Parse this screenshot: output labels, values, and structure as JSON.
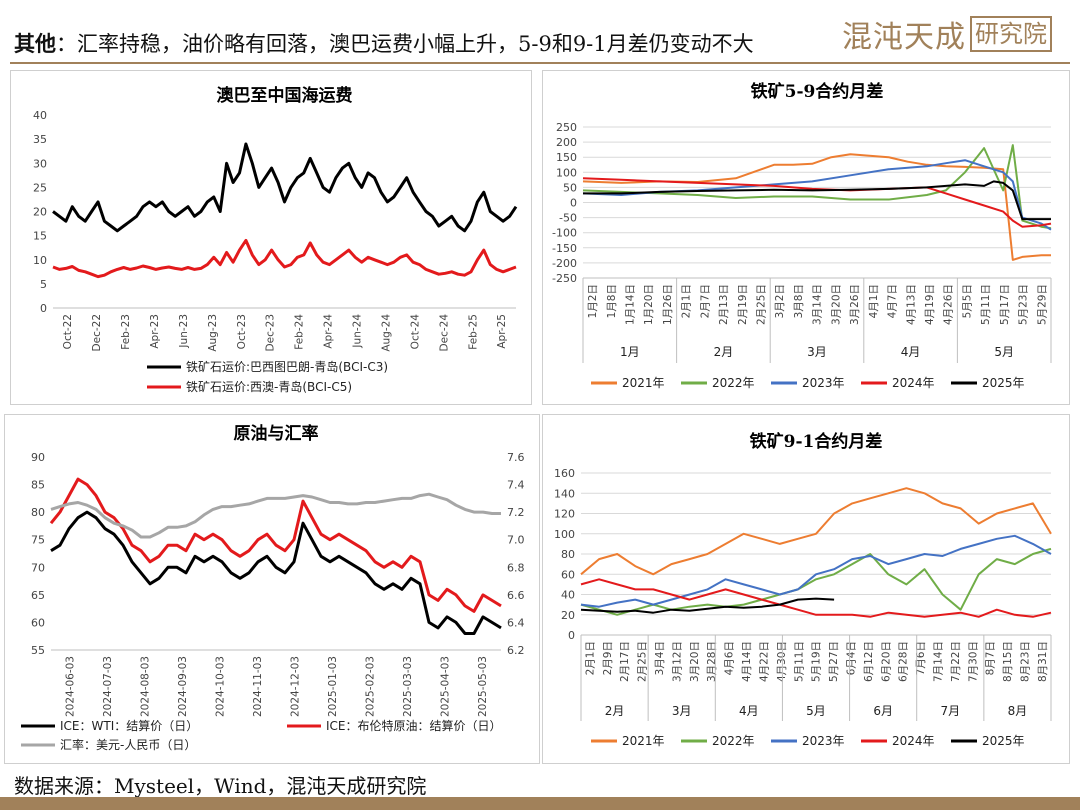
{
  "header": {
    "title_bold": "其他",
    "title_rest": "：汇率持稳，油价略有回落，澳巴运费小幅上升，5-9和9-1月差仍变动不大",
    "logo_text": "混沌天成",
    "logo_box": "研究院"
  },
  "footer": {
    "source": "数据来源：Mysteel，Wind，混沌天成研究院"
  },
  "colors": {
    "accent": "#a1815a",
    "s2021": "#ed7d31",
    "s2022": "#70ad47",
    "s2023": "#4472c4",
    "s2024": "#e31a1c",
    "s2025": "#000000",
    "fx": "#a6a6a6"
  },
  "chart_data": [
    {
      "id": "freight",
      "type": "line",
      "title": "澳巴至中国海运费",
      "ylim": [
        0,
        40
      ],
      "yticks": [
        0,
        5,
        10,
        15,
        20,
        25,
        30,
        35,
        40
      ],
      "xticks": [
        "Oct-22",
        "Dec-22",
        "Feb-23",
        "Apr-23",
        "Jun-23",
        "Aug-23",
        "Oct-23",
        "Dec-23",
        "Feb-24",
        "Apr-24",
        "Jun-24",
        "Aug-24",
        "Oct-24",
        "Dec-24",
        "Feb-25",
        "Apr-25"
      ],
      "series": [
        {
          "name": "铁矿石运价:巴西图巴朗-青岛(BCI-C3)",
          "color": "#000000",
          "values": [
            20,
            19,
            18,
            21,
            19,
            18,
            20,
            22,
            18,
            17,
            16,
            17,
            18,
            19,
            21,
            22,
            21,
            22,
            20,
            19,
            20,
            21,
            19,
            20,
            22,
            23,
            20,
            30,
            26,
            28,
            34,
            30,
            25,
            27,
            29,
            26,
            22,
            25,
            27,
            28,
            31,
            28,
            25,
            24,
            27,
            29,
            30,
            27,
            25,
            28,
            27,
            24,
            22,
            23,
            25,
            27,
            24,
            22,
            20,
            19,
            17,
            18,
            19,
            17,
            16,
            18,
            22,
            24,
            20,
            19,
            18,
            19,
            21
          ]
        },
        {
          "name": "铁矿石运价:西澳-青岛(BCI-C5)",
          "color": "#e31a1c",
          "values": [
            8.5,
            8,
            8.2,
            8.6,
            7.8,
            7.5,
            7,
            6.5,
            6.8,
            7.5,
            8,
            8.4,
            8,
            8.3,
            8.7,
            8.4,
            8,
            8.3,
            8.5,
            8.2,
            8,
            8.4,
            8,
            8.2,
            9,
            10.5,
            9,
            11.5,
            9.5,
            12,
            14,
            11,
            9,
            10,
            12,
            10,
            8.5,
            9,
            10.5,
            11,
            13.5,
            11,
            9.5,
            9,
            10,
            11,
            12,
            10.5,
            9.5,
            10.5,
            10,
            9.5,
            9,
            9.5,
            10.5,
            11,
            9.5,
            9,
            8,
            7.5,
            7,
            7.2,
            7.5,
            7,
            6.8,
            7.5,
            10,
            12,
            9,
            8,
            7.5,
            8,
            8.5
          ]
        }
      ]
    },
    {
      "id": "spread59",
      "type": "line",
      "title": "铁矿5-9合约月差",
      "ylim": [
        -250,
        250
      ],
      "yticks": [
        -250,
        -200,
        -150,
        -100,
        -50,
        0,
        50,
        100,
        150,
        200,
        250
      ],
      "xticks": [
        "1月2日",
        "1月8日",
        "1月14日",
        "1月20日",
        "1月26日",
        "2月1日",
        "2月7日",
        "2月13日",
        "2月19日",
        "2月25日",
        "3月2日",
        "3月8日",
        "3月14日",
        "3月20日",
        "3月26日",
        "4月1日",
        "4月7日",
        "4月13日",
        "4月19日",
        "4月26日",
        "5月5日",
        "5月11日",
        "5月17日",
        "5月23日",
        "5月29日"
      ],
      "months": [
        "1月",
        "2月",
        "3月",
        "4月",
        "5月"
      ],
      "series": [
        {
          "name": "2021年",
          "color": "#ed7d31",
          "x": [
            0,
            2,
            4,
            6,
            8,
            10,
            11,
            12,
            13,
            14,
            15,
            16,
            17,
            18,
            19,
            20,
            21,
            22,
            22.5,
            23,
            24,
            24.5
          ],
          "values": [
            70,
            65,
            70,
            68,
            80,
            125,
            125,
            128,
            150,
            160,
            155,
            150,
            135,
            125,
            120,
            118,
            115,
            110,
            -190,
            -180,
            -175,
            -175
          ]
        },
        {
          "name": "2022年",
          "color": "#70ad47",
          "x": [
            0,
            2,
            4,
            6,
            8,
            10,
            12,
            14,
            16,
            18,
            19,
            20,
            21,
            22,
            22.5,
            23,
            24,
            24.5
          ],
          "values": [
            40,
            35,
            30,
            25,
            15,
            20,
            20,
            10,
            10,
            25,
            40,
            100,
            180,
            40,
            190,
            -60,
            -80,
            -85
          ]
        },
        {
          "name": "2023年",
          "color": "#4472c4",
          "x": [
            0,
            2,
            4,
            6,
            8,
            10,
            12,
            14,
            16,
            18,
            19,
            20,
            21,
            22,
            22.5,
            23,
            24,
            24.5
          ],
          "values": [
            30,
            25,
            35,
            40,
            50,
            60,
            70,
            90,
            110,
            120,
            130,
            140,
            120,
            100,
            70,
            -50,
            -70,
            -90
          ]
        },
        {
          "name": "2024年",
          "color": "#e31a1c",
          "x": [
            0,
            2,
            4,
            6,
            8,
            10,
            12,
            14,
            16,
            18,
            19,
            20,
            21,
            22,
            22.5,
            23,
            24,
            24.5
          ],
          "values": [
            80,
            75,
            70,
            65,
            60,
            55,
            45,
            40,
            45,
            50,
            30,
            10,
            -10,
            -30,
            -60,
            -80,
            -75,
            -70
          ]
        },
        {
          "name": "2025年",
          "color": "#000000",
          "x": [
            0,
            2,
            4,
            6,
            8,
            10,
            12,
            14,
            16,
            18,
            19,
            20,
            21,
            21.5,
            22,
            22.5,
            23,
            24,
            24.5
          ],
          "values": [
            30,
            30,
            35,
            38,
            40,
            42,
            40,
            42,
            45,
            50,
            55,
            60,
            55,
            70,
            65,
            40,
            -55,
            -55,
            -55
          ]
        }
      ]
    },
    {
      "id": "oilfx",
      "type": "line",
      "title": "原油与汇率",
      "ylim": [
        55,
        90
      ],
      "yticks": [
        55,
        60,
        65,
        70,
        75,
        80,
        85,
        90
      ],
      "y2lim": [
        6.2,
        7.6
      ],
      "y2ticks": [
        6.2,
        6.4,
        6.6,
        6.8,
        7.0,
        7.2,
        7.4,
        7.6
      ],
      "xticks": [
        "2024-06-03",
        "2024-07-03",
        "2024-08-03",
        "2024-09-03",
        "2024-10-03",
        "2024-11-03",
        "2024-12-03",
        "2025-01-03",
        "2025-02-03",
        "2025-03-03",
        "2025-04-03",
        "2025-05-03"
      ],
      "series": [
        {
          "name": "ICE：WTI：结算价（日）",
          "color": "#000000",
          "axis": "left",
          "values": [
            73,
            74,
            77,
            79,
            80,
            79,
            77,
            76,
            74,
            71,
            69,
            67,
            68,
            70,
            70,
            69,
            72,
            71,
            72,
            71,
            69,
            68,
            69,
            71,
            72,
            70,
            69,
            71,
            78,
            75,
            72,
            71,
            72,
            71,
            70,
            69,
            67,
            66,
            67,
            66,
            68,
            67,
            60,
            59,
            61,
            60,
            58,
            58,
            61,
            60,
            59
          ]
        },
        {
          "name": "ICE：布伦特原油：结算价（日）",
          "color": "#e31a1c",
          "axis": "left",
          "values": [
            78,
            80,
            83,
            86,
            85,
            83,
            80,
            79,
            77,
            74,
            73,
            71,
            72,
            74,
            74,
            73,
            76,
            75,
            76,
            75,
            73,
            72,
            73,
            75,
            76,
            74,
            73,
            75,
            82,
            79,
            76,
            75,
            76,
            75,
            74,
            73,
            71,
            70,
            71,
            70,
            72,
            71,
            65,
            64,
            66,
            65,
            63,
            62,
            65,
            64,
            63
          ]
        },
        {
          "name": "汇率：美元-人民币（日）",
          "color": "#a6a6a6",
          "axis": "right",
          "values": [
            7.22,
            7.24,
            7.26,
            7.27,
            7.25,
            7.22,
            7.16,
            7.12,
            7.1,
            7.07,
            7.02,
            7.02,
            7.05,
            7.09,
            7.09,
            7.1,
            7.13,
            7.18,
            7.22,
            7.24,
            7.24,
            7.25,
            7.26,
            7.28,
            7.3,
            7.3,
            7.3,
            7.31,
            7.32,
            7.31,
            7.29,
            7.27,
            7.27,
            7.26,
            7.26,
            7.27,
            7.27,
            7.28,
            7.29,
            7.3,
            7.3,
            7.32,
            7.33,
            7.31,
            7.29,
            7.25,
            7.22,
            7.2,
            7.2,
            7.19,
            7.19
          ]
        }
      ]
    },
    {
      "id": "spread91",
      "type": "line",
      "title": "铁矿9-1合约月差",
      "ylim": [
        0,
        160
      ],
      "yticks": [
        0,
        20,
        40,
        60,
        80,
        100,
        120,
        140,
        160
      ],
      "xticks": [
        "2月1日",
        "2月9日",
        "2月17日",
        "2月25日",
        "3月4日",
        "3月12日",
        "3月20日",
        "3月28日",
        "4月6日",
        "4月14日",
        "4月22日",
        "4月30日",
        "5月11日",
        "5月19日",
        "5月27日",
        "6月4日",
        "6月12日",
        "6月20日",
        "6月28日",
        "7月6日",
        "7月14日",
        "7月22日",
        "7月30日",
        "8月7日",
        "8月15日",
        "8月23日",
        "8月31日"
      ],
      "months": [
        "2月",
        "3月",
        "4月",
        "5月",
        "6月",
        "7月",
        "8月"
      ],
      "series": [
        {
          "name": "2021年",
          "color": "#ed7d31",
          "x": [
            0,
            1,
            2,
            3,
            4,
            5,
            6,
            7,
            8,
            9,
            10,
            11,
            12,
            13,
            14,
            15,
            16,
            17,
            18,
            19,
            20,
            21,
            22,
            23,
            24,
            25,
            26
          ],
          "values": [
            60,
            75,
            80,
            68,
            60,
            70,
            75,
            80,
            90,
            100,
            95,
            90,
            95,
            100,
            120,
            130,
            135,
            140,
            145,
            140,
            130,
            125,
            110,
            120,
            125,
            130,
            100
          ]
        },
        {
          "name": "2022年",
          "color": "#70ad47",
          "x": [
            0,
            1,
            2,
            3,
            4,
            5,
            6,
            7,
            8,
            9,
            10,
            11,
            12,
            13,
            14,
            15,
            16,
            17,
            18,
            19,
            20,
            21,
            22,
            23,
            24,
            25,
            26
          ],
          "values": [
            30,
            25,
            20,
            25,
            30,
            25,
            28,
            30,
            28,
            30,
            35,
            40,
            45,
            55,
            60,
            70,
            80,
            60,
            50,
            65,
            40,
            25,
            60,
            75,
            70,
            80,
            85
          ]
        },
        {
          "name": "2023年",
          "color": "#4472c4",
          "x": [
            0,
            1,
            2,
            3,
            4,
            5,
            6,
            7,
            8,
            9,
            10,
            11,
            12,
            13,
            14,
            15,
            16,
            17,
            18,
            19,
            20,
            21,
            22,
            23,
            24,
            25,
            26
          ],
          "values": [
            30,
            28,
            32,
            35,
            30,
            35,
            40,
            45,
            55,
            50,
            45,
            40,
            45,
            60,
            65,
            75,
            78,
            70,
            75,
            80,
            78,
            85,
            90,
            95,
            98,
            90,
            80
          ]
        },
        {
          "name": "2024年",
          "color": "#e31a1c",
          "x": [
            0,
            1,
            2,
            3,
            4,
            5,
            6,
            7,
            8,
            9,
            10,
            11,
            12,
            13,
            14,
            15,
            16,
            17,
            18,
            19,
            20,
            21,
            22,
            23,
            24,
            25,
            26
          ],
          "values": [
            50,
            55,
            50,
            45,
            45,
            40,
            35,
            40,
            45,
            40,
            35,
            30,
            25,
            20,
            20,
            20,
            18,
            22,
            20,
            18,
            20,
            22,
            18,
            25,
            20,
            18,
            22
          ]
        },
        {
          "name": "2025年",
          "color": "#000000",
          "x": [
            0,
            1,
            2,
            3,
            4,
            5,
            6,
            7,
            8,
            9,
            10,
            11,
            12,
            13,
            14
          ],
          "values": [
            25,
            24,
            23,
            24,
            22,
            25,
            24,
            26,
            28,
            27,
            28,
            30,
            35,
            36,
            35
          ]
        }
      ]
    }
  ]
}
